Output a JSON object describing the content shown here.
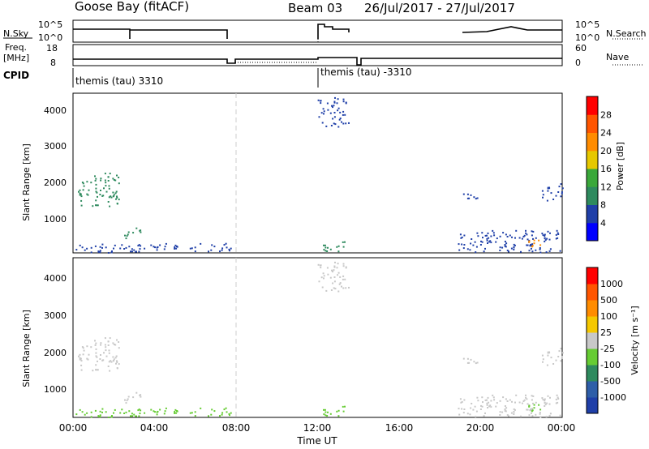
{
  "header": {
    "radar": "Goose Bay (fitACF)",
    "beam": "Beam 03",
    "date_range": "26/Jul/2017 - 27/Jul/2017"
  },
  "status_panels": {
    "nsky_label": "N.Sky",
    "nsky_ticks": [
      "10^5",
      "10^0"
    ],
    "nsearch_label": "N.Search",
    "nsearch_ticks": [
      "10^5",
      "10^0"
    ],
    "freq_label": "Freq.",
    "freq_unit": "[MHz]",
    "freq_ticks": [
      "18",
      "8"
    ],
    "nave_label": "Nave",
    "nave_ticks": [
      "60",
      "0"
    ],
    "cpid_label": "CPID",
    "cpid_segments": [
      {
        "text": "themis (tau) 3310",
        "start_hour": 0
      },
      {
        "text": "themis (tau) -3310",
        "start_hour": 12
      }
    ]
  },
  "chart_data": [
    {
      "type": "heatmap",
      "name": "power",
      "xlabel": "",
      "ylabel": "Slant Range [km]",
      "x_range_hours": [
        0,
        24
      ],
      "ylim": [
        180,
        4500
      ],
      "yticks": [
        "1000",
        "2000",
        "3000",
        "4000"
      ],
      "colorbar": {
        "label": "Power [dB]",
        "ticks": [
          "4",
          "8",
          "12",
          "16",
          "20",
          "24",
          "28"
        ],
        "colors": [
          "#0000ff",
          "#1f3fa8",
          "#2e8a5e",
          "#3aa83a",
          "#e6c800",
          "#ff8c00",
          "#ff5500",
          "#ff0000"
        ]
      },
      "regions": [
        {
          "x0": 0.2,
          "x1": 2.3,
          "y0": 1450,
          "y1": 2350,
          "color": "#2e8a5e"
        },
        {
          "x0": 0.1,
          "x1": 7.8,
          "y0": 200,
          "y1": 450,
          "color": "#1f3fa8"
        },
        {
          "x0": 2.5,
          "x1": 3.3,
          "y0": 550,
          "y1": 900,
          "color": "#2e8a5e"
        },
        {
          "x0": 12.0,
          "x1": 13.5,
          "y0": 3600,
          "y1": 4400,
          "color": "#1f3fa8"
        },
        {
          "x0": 12.1,
          "x1": 13.4,
          "y0": 200,
          "y1": 500,
          "color": "#2e8a5e"
        },
        {
          "x0": 18.8,
          "x1": 24.0,
          "y0": 200,
          "y1": 800,
          "color": "#1f3fa8"
        },
        {
          "x0": 22.3,
          "x1": 23.0,
          "y0": 300,
          "y1": 600,
          "color": "#ff8c00"
        },
        {
          "x0": 23.0,
          "x1": 24.0,
          "y0": 1600,
          "y1": 2100,
          "color": "#1f3fa8"
        },
        {
          "x0": 19.0,
          "x1": 20.0,
          "y0": 1650,
          "y1": 1800,
          "color": "#1f3fa8"
        }
      ]
    },
    {
      "type": "heatmap",
      "name": "velocity",
      "xlabel": "Time UT",
      "ylabel": "Slant Range [km]",
      "x_range_hours": [
        0,
        24
      ],
      "ylim": [
        180,
        4500
      ],
      "yticks": [
        "1000",
        "2000",
        "3000",
        "4000"
      ],
      "xticks": [
        "00:00",
        "04:00",
        "08:00",
        "12:00",
        "16:00",
        "20:00",
        "00:00"
      ],
      "colorbar": {
        "label": "Velocity [m s⁻¹]",
        "ticks": [
          "1000",
          "500",
          "100",
          "25",
          "-25",
          "-100",
          "-500",
          "-1000"
        ],
        "colors": [
          "#1f3fa8",
          "#2e5ea8",
          "#2e8a5e",
          "#66cc33",
          "#c8c8c8",
          "#f5c800",
          "#ff8c00",
          "#ff5500",
          "#ff0000"
        ]
      },
      "regions": [
        {
          "x0": 0.2,
          "x1": 2.3,
          "y0": 1450,
          "y1": 2350,
          "color": "#c8c8c8"
        },
        {
          "x0": 0.1,
          "x1": 7.8,
          "y0": 200,
          "y1": 450,
          "color": "#66cc33"
        },
        {
          "x0": 2.5,
          "x1": 3.3,
          "y0": 550,
          "y1": 900,
          "color": "#c8c8c8"
        },
        {
          "x0": 12.0,
          "x1": 13.5,
          "y0": 3600,
          "y1": 4400,
          "color": "#c8c8c8"
        },
        {
          "x0": 12.1,
          "x1": 13.4,
          "y0": 200,
          "y1": 500,
          "color": "#66cc33"
        },
        {
          "x0": 18.8,
          "x1": 24.0,
          "y0": 200,
          "y1": 800,
          "color": "#c8c8c8"
        },
        {
          "x0": 22.3,
          "x1": 23.0,
          "y0": 300,
          "y1": 600,
          "color": "#66cc33"
        },
        {
          "x0": 23.0,
          "x1": 24.0,
          "y0": 1600,
          "y1": 2100,
          "color": "#c8c8c8"
        },
        {
          "x0": 19.0,
          "x1": 20.0,
          "y0": 1650,
          "y1": 1800,
          "color": "#c8c8c8"
        }
      ]
    }
  ]
}
